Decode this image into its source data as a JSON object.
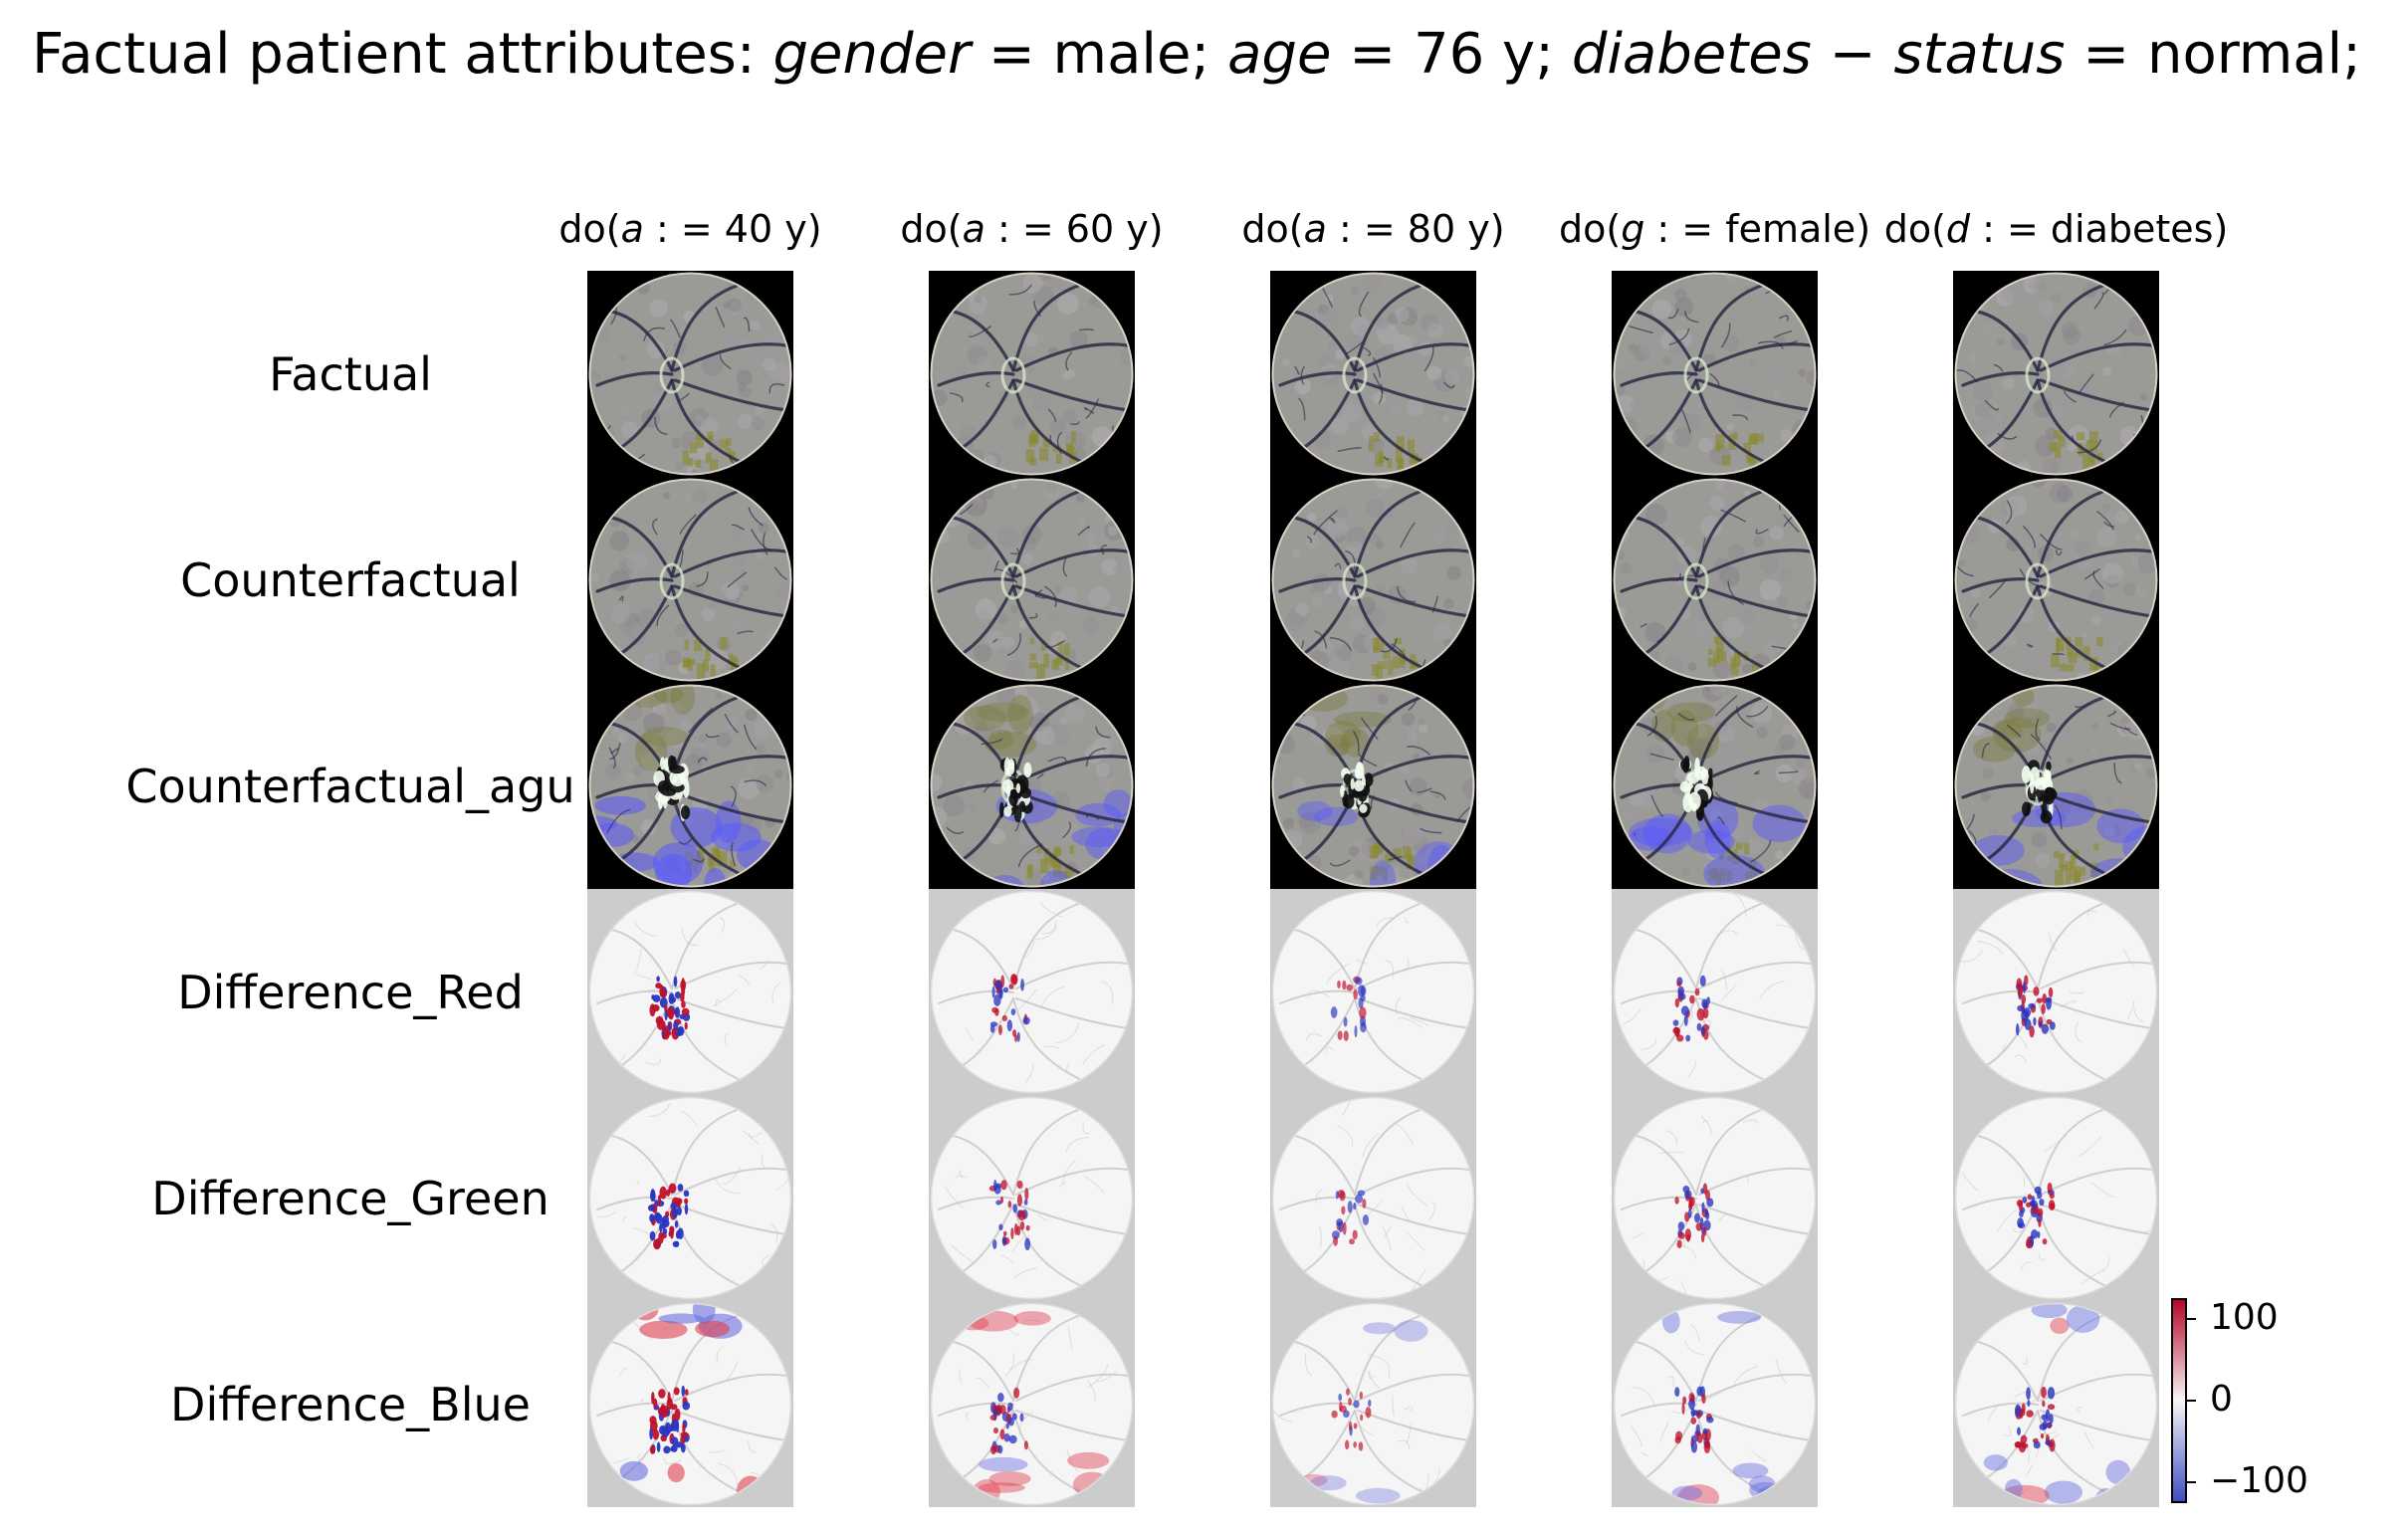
{
  "title": {
    "prefix": "Factual patient attributes: ",
    "gender_key": "gender",
    "gender_val": " = male; ",
    "age_key": "age",
    "age_val": " = 76 y; ",
    "diab_key": "diabetes − status",
    "diab_val": " = normal;"
  },
  "columns": [
    {
      "pre": "do(",
      "var": "a",
      "post": " : = 40 y)"
    },
    {
      "pre": "do(",
      "var": "a",
      "post": " : = 60 y)"
    },
    {
      "pre": "do(",
      "var": "a",
      "post": " : = 80 y)"
    },
    {
      "pre": "do(",
      "var": "g",
      "post": " : = female)"
    },
    {
      "pre": "do(",
      "var": "d",
      "post": " : = diabetes)"
    }
  ],
  "rows": [
    {
      "label": "Factual",
      "kind": "fundus"
    },
    {
      "label": "Counterfactual",
      "kind": "fundus"
    },
    {
      "label": "Counterfactual_agu",
      "kind": "augmented"
    },
    {
      "label": "Difference_Red",
      "kind": "diff"
    },
    {
      "label": "Difference_Green",
      "kind": "diff"
    },
    {
      "label": "Difference_Blue",
      "kind": "diffblue"
    }
  ],
  "colorbar": {
    "ticks": [
      "100",
      "0",
      "−100"
    ],
    "colors": {
      "high": "#b40426",
      "mid": "#f7f7f7",
      "low": "#3b4cc0"
    }
  },
  "diff_intensity": [
    1.0,
    0.55,
    0.3,
    0.6,
    0.65
  ]
}
